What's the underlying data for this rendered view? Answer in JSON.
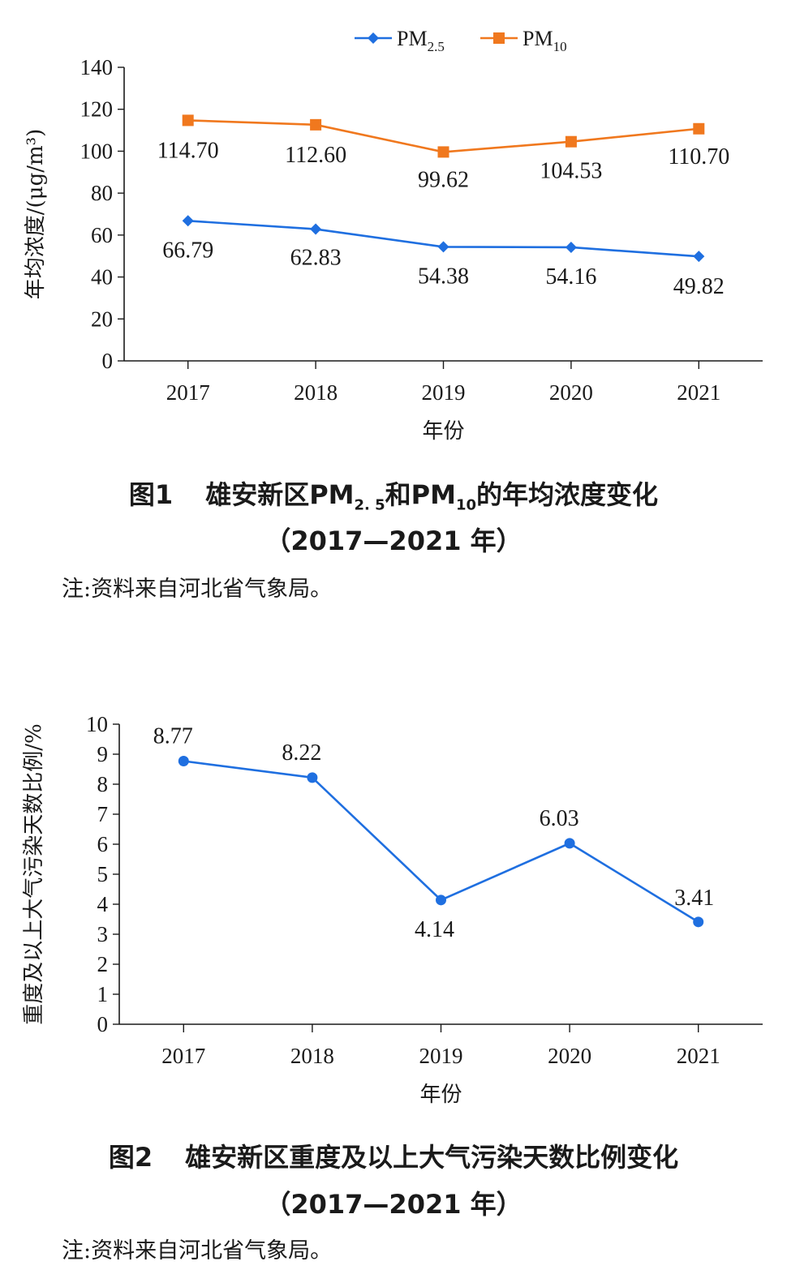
{
  "chart_data": [
    {
      "type": "line",
      "caption_num": "图1",
      "caption_pre": "雄安新区PM",
      "caption_sub1": "2. 5",
      "caption_mid": "和PM",
      "caption_sub2": "10",
      "caption_post": "的年均浓度变化",
      "caption_years": "（2017—2021 年）",
      "note": "注:资料来自河北省气象局。",
      "xlabel": "年份",
      "ylabel": "年均浓度/(μg/m³)",
      "ylim": [
        0,
        140
      ],
      "yticks": [
        "0",
        "20",
        "40",
        "60",
        "80",
        "100",
        "120",
        "140"
      ],
      "categories": [
        "2017",
        "2018",
        "2019",
        "2020",
        "2021"
      ],
      "legend_position": "top-center",
      "series": [
        {
          "name": "PM",
          "name_sub": "2.5",
          "color": "#1f6fe0",
          "marker": "diamond",
          "values": [
            66.79,
            62.83,
            54.38,
            54.16,
            49.82
          ],
          "labels": [
            "66.79",
            "62.83",
            "54.38",
            "54.16",
            "49.82"
          ]
        },
        {
          "name": "PM",
          "name_sub": "10",
          "color": "#f0781e",
          "marker": "square",
          "values": [
            114.7,
            112.6,
            99.62,
            104.53,
            110.7
          ],
          "labels": [
            "114.70",
            "112.60",
            "99.62",
            "104.53",
            "110.70"
          ]
        }
      ]
    },
    {
      "type": "line",
      "caption_num": "图2",
      "caption_text": "雄安新区重度及以上大气污染天数比例变化",
      "caption_years": "（2017—2021 年）",
      "note": "注:资料来自河北省气象局。",
      "xlabel": "年份",
      "ylabel": "重度及以上大气污染天数比例/%",
      "ylim": [
        0,
        10
      ],
      "yticks": [
        "0",
        "1",
        "2",
        "3",
        "4",
        "5",
        "6",
        "7",
        "8",
        "9",
        "10"
      ],
      "categories": [
        "2017",
        "2018",
        "2019",
        "2020",
        "2021"
      ],
      "series": [
        {
          "color": "#1f6fe0",
          "marker": "circle",
          "values": [
            8.77,
            8.22,
            4.14,
            6.03,
            3.41
          ],
          "labels": [
            "8.77",
            "8.22",
            "4.14",
            "6.03",
            "3.41"
          ]
        }
      ]
    }
  ]
}
